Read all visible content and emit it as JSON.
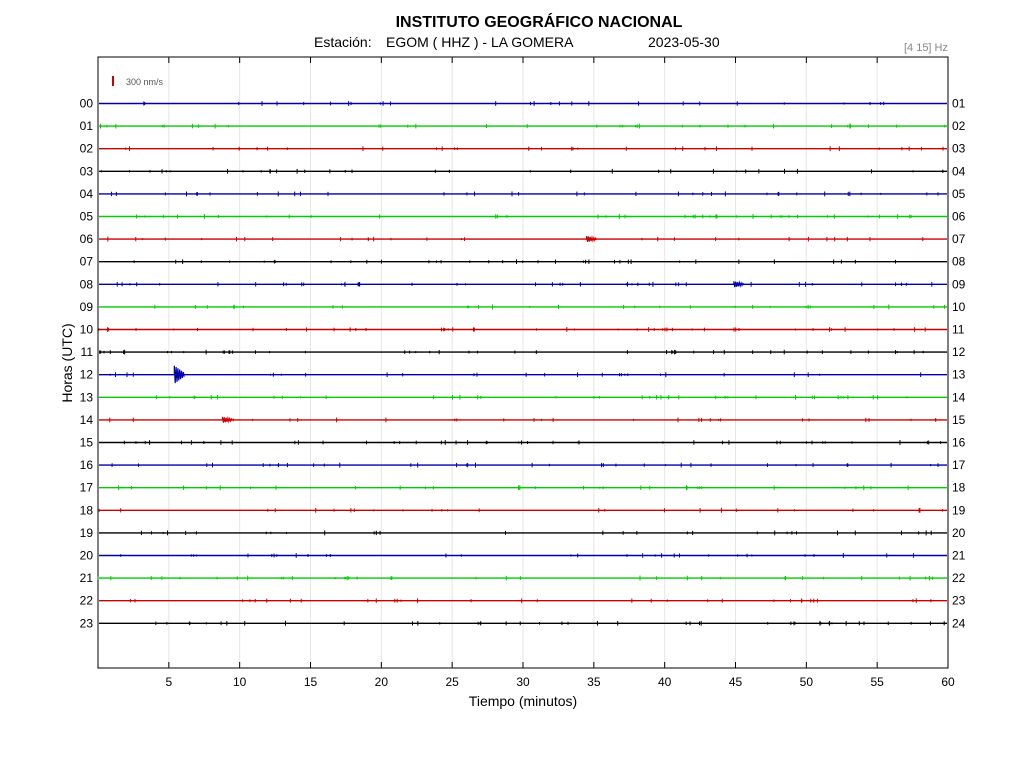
{
  "header": {
    "title": "INSTITUTO GEOGRÁFICO NACIONAL",
    "station_label": "Estación:",
    "station": "EGOM ( HHZ ) - LA GOMERA",
    "date": "2023-05-30",
    "band": "[4 15] Hz"
  },
  "scale_label": "300 nm/s",
  "chart_data": {
    "type": "line",
    "title": "INSTITUTO GEOGRÁFICO NACIONAL",
    "xlabel": "Tiempo (minutos)",
    "ylabel": "Horas (UTC)",
    "xlim": [
      0,
      60
    ],
    "x_ticks": [
      5,
      10,
      15,
      20,
      25,
      30,
      35,
      40,
      45,
      50,
      55,
      60
    ],
    "hours_left": [
      "00",
      "01",
      "02",
      "03",
      "04",
      "05",
      "06",
      "07",
      "08",
      "09",
      "10",
      "11",
      "12",
      "13",
      "14",
      "15",
      "16",
      "17",
      "18",
      "19",
      "20",
      "21",
      "22",
      "23"
    ],
    "hours_right": [
      "01",
      "02",
      "03",
      "04",
      "05",
      "06",
      "07",
      "08",
      "09",
      "10",
      "11",
      "12",
      "13",
      "14",
      "15",
      "16",
      "17",
      "18",
      "19",
      "20",
      "21",
      "22",
      "23",
      "24"
    ],
    "trace_colors": [
      "#0000aa",
      "#00cc00",
      "#cc0000",
      "#000000"
    ],
    "grid": "vertical",
    "events": [
      {
        "hour": 6,
        "minute": 34.7,
        "amplitude": 3
      },
      {
        "hour": 8,
        "minute": 45.1,
        "amplitude": 3
      },
      {
        "hour": 12,
        "minute": 5.6,
        "amplitude": 9
      },
      {
        "hour": 14,
        "minute": 9.0,
        "amplitude": 3
      }
    ]
  }
}
